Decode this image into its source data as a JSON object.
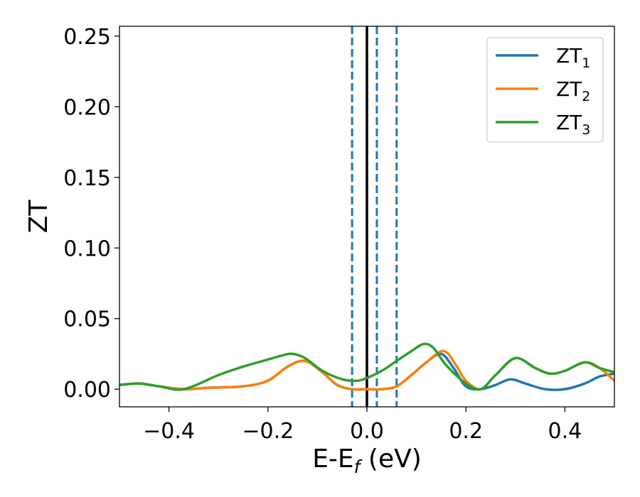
{
  "chart_data": {
    "type": "line",
    "xlabel": {
      "base": "E-E",
      "sub": "f",
      "suffix": " (eV)"
    },
    "ylabel": "ZT",
    "xlim": [
      -0.5,
      0.5
    ],
    "ylim": [
      -0.0125,
      0.257
    ],
    "x_ticks": [
      -0.4,
      -0.2,
      0.0,
      0.2,
      0.4
    ],
    "x_tick_labels": [
      "−0.4",
      "−0.2",
      "0.0",
      "0.2",
      "0.4"
    ],
    "y_ticks": [
      0.0,
      0.05,
      0.1,
      0.15,
      0.2,
      0.25
    ],
    "y_tick_labels": [
      "0.00",
      "0.05",
      "0.10",
      "0.15",
      "0.20",
      "0.25"
    ],
    "grid": false,
    "legend_position": "top-right",
    "series": [
      {
        "name": "ZT",
        "name_sub": "1",
        "color": "#1f77b4",
        "x": [
          -0.5,
          -0.46,
          -0.42,
          -0.37,
          -0.32,
          -0.25,
          -0.2,
          -0.16,
          -0.125,
          -0.09,
          -0.06,
          -0.03,
          0.0,
          0.03,
          0.06,
          0.09,
          0.12,
          0.15,
          0.175,
          0.2,
          0.23,
          0.26,
          0.29,
          0.32,
          0.36,
          0.4,
          0.44,
          0.47,
          0.5
        ],
        "y": [
          0.003,
          0.004,
          0.002,
          0.0,
          0.001,
          0.002,
          0.006,
          0.016,
          0.02,
          0.012,
          0.003,
          0.0,
          0.0,
          0.0,
          0.002,
          0.01,
          0.019,
          0.025,
          0.015,
          0.002,
          0.0,
          0.003,
          0.007,
          0.004,
          0.0,
          0.0,
          0.004,
          0.009,
          0.011
        ]
      },
      {
        "name": "ZT",
        "name_sub": "2",
        "color": "#ff7f0e",
        "x": [
          -0.5,
          -0.46,
          -0.42,
          -0.37,
          -0.32,
          -0.25,
          -0.2,
          -0.16,
          -0.125,
          -0.09,
          -0.06,
          -0.03,
          0.0,
          0.03,
          0.06,
          0.09,
          0.12,
          0.155,
          0.18,
          0.2,
          0.23,
          0.26,
          0.3,
          0.34,
          0.37,
          0.4,
          0.44,
          0.47,
          0.5
        ],
        "y": [
          0.003,
          0.004,
          0.002,
          0.0,
          0.001,
          0.002,
          0.006,
          0.016,
          0.02,
          0.012,
          0.003,
          0.0,
          0.0,
          0.0,
          0.002,
          0.01,
          0.019,
          0.027,
          0.017,
          0.006,
          0.0,
          0.01,
          0.022,
          0.015,
          0.011,
          0.013,
          0.019,
          0.015,
          0.006
        ]
      },
      {
        "name": "ZT",
        "name_sub": "3",
        "color": "#2ca02c",
        "x": [
          -0.5,
          -0.46,
          -0.42,
          -0.37,
          -0.3,
          -0.25,
          -0.2,
          -0.17,
          -0.15,
          -0.125,
          -0.09,
          -0.05,
          -0.02,
          0.0,
          0.03,
          0.06,
          0.09,
          0.115,
          0.135,
          0.16,
          0.2,
          0.23,
          0.26,
          0.3,
          0.34,
          0.37,
          0.4,
          0.44,
          0.47,
          0.5
        ],
        "y": [
          0.003,
          0.004,
          0.002,
          0.0,
          0.01,
          0.016,
          0.021,
          0.024,
          0.025,
          0.022,
          0.013,
          0.007,
          0.006,
          0.008,
          0.013,
          0.02,
          0.027,
          0.032,
          0.029,
          0.017,
          0.004,
          0.0,
          0.01,
          0.022,
          0.015,
          0.011,
          0.013,
          0.019,
          0.015,
          0.012
        ]
      }
    ],
    "vlines": [
      {
        "x": 0.0,
        "color": "#000000",
        "style": "solid"
      },
      {
        "x": -0.03,
        "color": "#1f77b4",
        "style": "dashed"
      },
      {
        "x": 0.02,
        "color": "#1f77b4",
        "style": "dashed"
      },
      {
        "x": 0.06,
        "color": "#1f77b4",
        "style": "dashed"
      }
    ]
  }
}
